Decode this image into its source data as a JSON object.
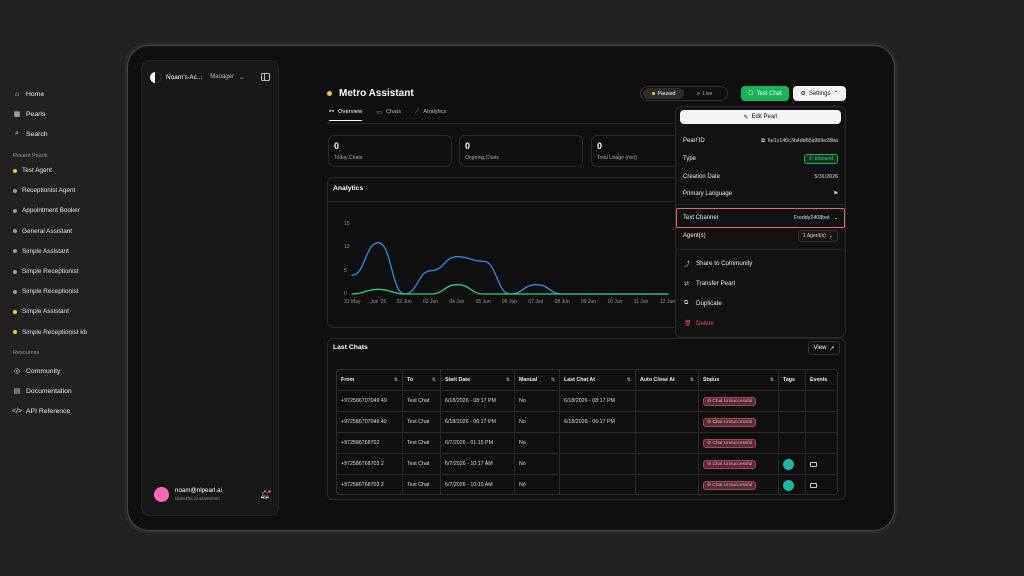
{
  "sidebar": {
    "account": "Noam's Ac...",
    "role": "Manager",
    "nav": [
      {
        "label": "Home",
        "icon": "home-icon"
      },
      {
        "label": "Pearls",
        "icon": "grid-icon"
      },
      {
        "label": "Search",
        "icon": "search-icon"
      }
    ],
    "recent_label": "Recent Pearls",
    "recent": [
      {
        "label": "Test Agent",
        "color": "#f3c54b"
      },
      {
        "label": "Receptionist Agent",
        "color": "#9a9a9a"
      },
      {
        "label": "Appointment Booker",
        "color": "#9a9a9a"
      },
      {
        "label": "General Assistant",
        "color": "#9a9a9a"
      },
      {
        "label": "Simple Assistant",
        "color": "#9a9a9a"
      },
      {
        "label": "Simple Receptionist",
        "color": "#9a9a9a"
      },
      {
        "label": "Simple Receptionist",
        "color": "#9a9a9a"
      },
      {
        "label": "Simple Assistant",
        "color": "#f3c54b"
      },
      {
        "label": "Simple Receptionist kb",
        "color": "#f3c54b"
      }
    ],
    "resources_label": "Resources",
    "resources": [
      {
        "label": "Community",
        "icon": "compass-icon"
      },
      {
        "label": "Documentation",
        "icon": "book-icon"
      },
      {
        "label": "API Reference",
        "icon": "code-icon"
      }
    ],
    "user": {
      "email": "noam@nlpearl.ai",
      "id": "bb8b4f9c3242685f650"
    }
  },
  "header": {
    "title": "Metro Assistant",
    "toggle": {
      "paused": "Paused",
      "live": "Live"
    },
    "test_chat": "Test Chat",
    "settings": "Settings"
  },
  "tabs": [
    {
      "label": "Overview",
      "active": true
    },
    {
      "label": "Chats",
      "active": false
    },
    {
      "label": "Analytics",
      "active": false
    }
  ],
  "stats": [
    {
      "value": "0",
      "label": "Today Chats"
    },
    {
      "value": "0",
      "label": "Ongoing Chats"
    },
    {
      "value": "0",
      "label": "Total Usage (min)"
    }
  ],
  "analytics_title": "Analytics",
  "chart_data": {
    "type": "line",
    "categories": [
      "31 May",
      "Jun '26",
      "02 Jun",
      "03 Jun",
      "04 Jun",
      "05 Jun",
      "06 Jun",
      "07 Jun",
      "08 Jun",
      "09 Jun",
      "10 Jun",
      "11 Jun",
      "12 Jun"
    ],
    "yticks": [
      0,
      5,
      10,
      15
    ],
    "ylim": [
      0,
      15
    ],
    "series": [
      {
        "color": "#2f8ce6",
        "values": [
          4,
          11,
          0,
          5,
          8,
          7,
          0,
          2,
          0,
          0,
          0,
          0,
          0
        ]
      },
      {
        "color": "#2fcf7a",
        "values": [
          0,
          1,
          0,
          0,
          2,
          0,
          0,
          0,
          0,
          0,
          0,
          0,
          0
        ]
      }
    ]
  },
  "last_chats": {
    "title": "Last Chats",
    "view": "View",
    "columns": [
      "From",
      "To",
      "Start Date",
      "Manual",
      "Last Chat At",
      "Auto Close At",
      "Status",
      "Tags",
      "Events"
    ],
    "rows": [
      {
        "from": "+972586707049 49",
        "to": "Test Chat",
        "start": "6/18/2026 - 08:17 PM",
        "manual": "No",
        "last": "6/18/2026 - 08:17 PM",
        "status": "Chat Unsuccessful",
        "tag": false,
        "event": false
      },
      {
        "from": "+972586707049 49",
        "to": "Test Chat",
        "start": "6/18/2026 - 06:17 PM",
        "manual": "No",
        "last": "6/18/2026 - 06:17 PM",
        "status": "Chat Unsuccessful",
        "tag": false,
        "event": false
      },
      {
        "from": "+972586768702",
        "to": "Test Chat",
        "start": "6/7/2026 - 01:15 PM",
        "manual": "No",
        "last": "",
        "status": "Chat Unsuccessful",
        "tag": false,
        "event": false
      },
      {
        "from": "+972586768703 2",
        "to": "Test Chat",
        "start": "6/7/2026 - 10:17 AM",
        "manual": "No",
        "last": "",
        "status": "Chat Unsuccessful",
        "tag": true,
        "event": true
      },
      {
        "from": "+972586768703 2",
        "to": "Test Chat",
        "start": "6/7/2026 - 10:10 AM",
        "manual": "No",
        "last": "",
        "status": "Chat Unsuccessful",
        "tag": true,
        "event": true
      }
    ]
  },
  "settings_menu": {
    "edit": "Edit Pearl",
    "pearl_id_label": "Pearl ID",
    "pearl_id": "6e1c140c3b4dd60a9b9e28ba",
    "type_label": "Type",
    "type": "Inbound",
    "creation_label": "Creation Date",
    "creation": "5/31/2026",
    "language_label": "Primary Language",
    "text_channel_label": "Text Channel",
    "text_channel": "Freddy2408bot",
    "agents_label": "Agent(s)",
    "agents": "1 Agent(s)",
    "share": "Share to Community",
    "transfer": "Transfer Pearl",
    "duplicate": "Duplicate",
    "delete": "Delete"
  }
}
